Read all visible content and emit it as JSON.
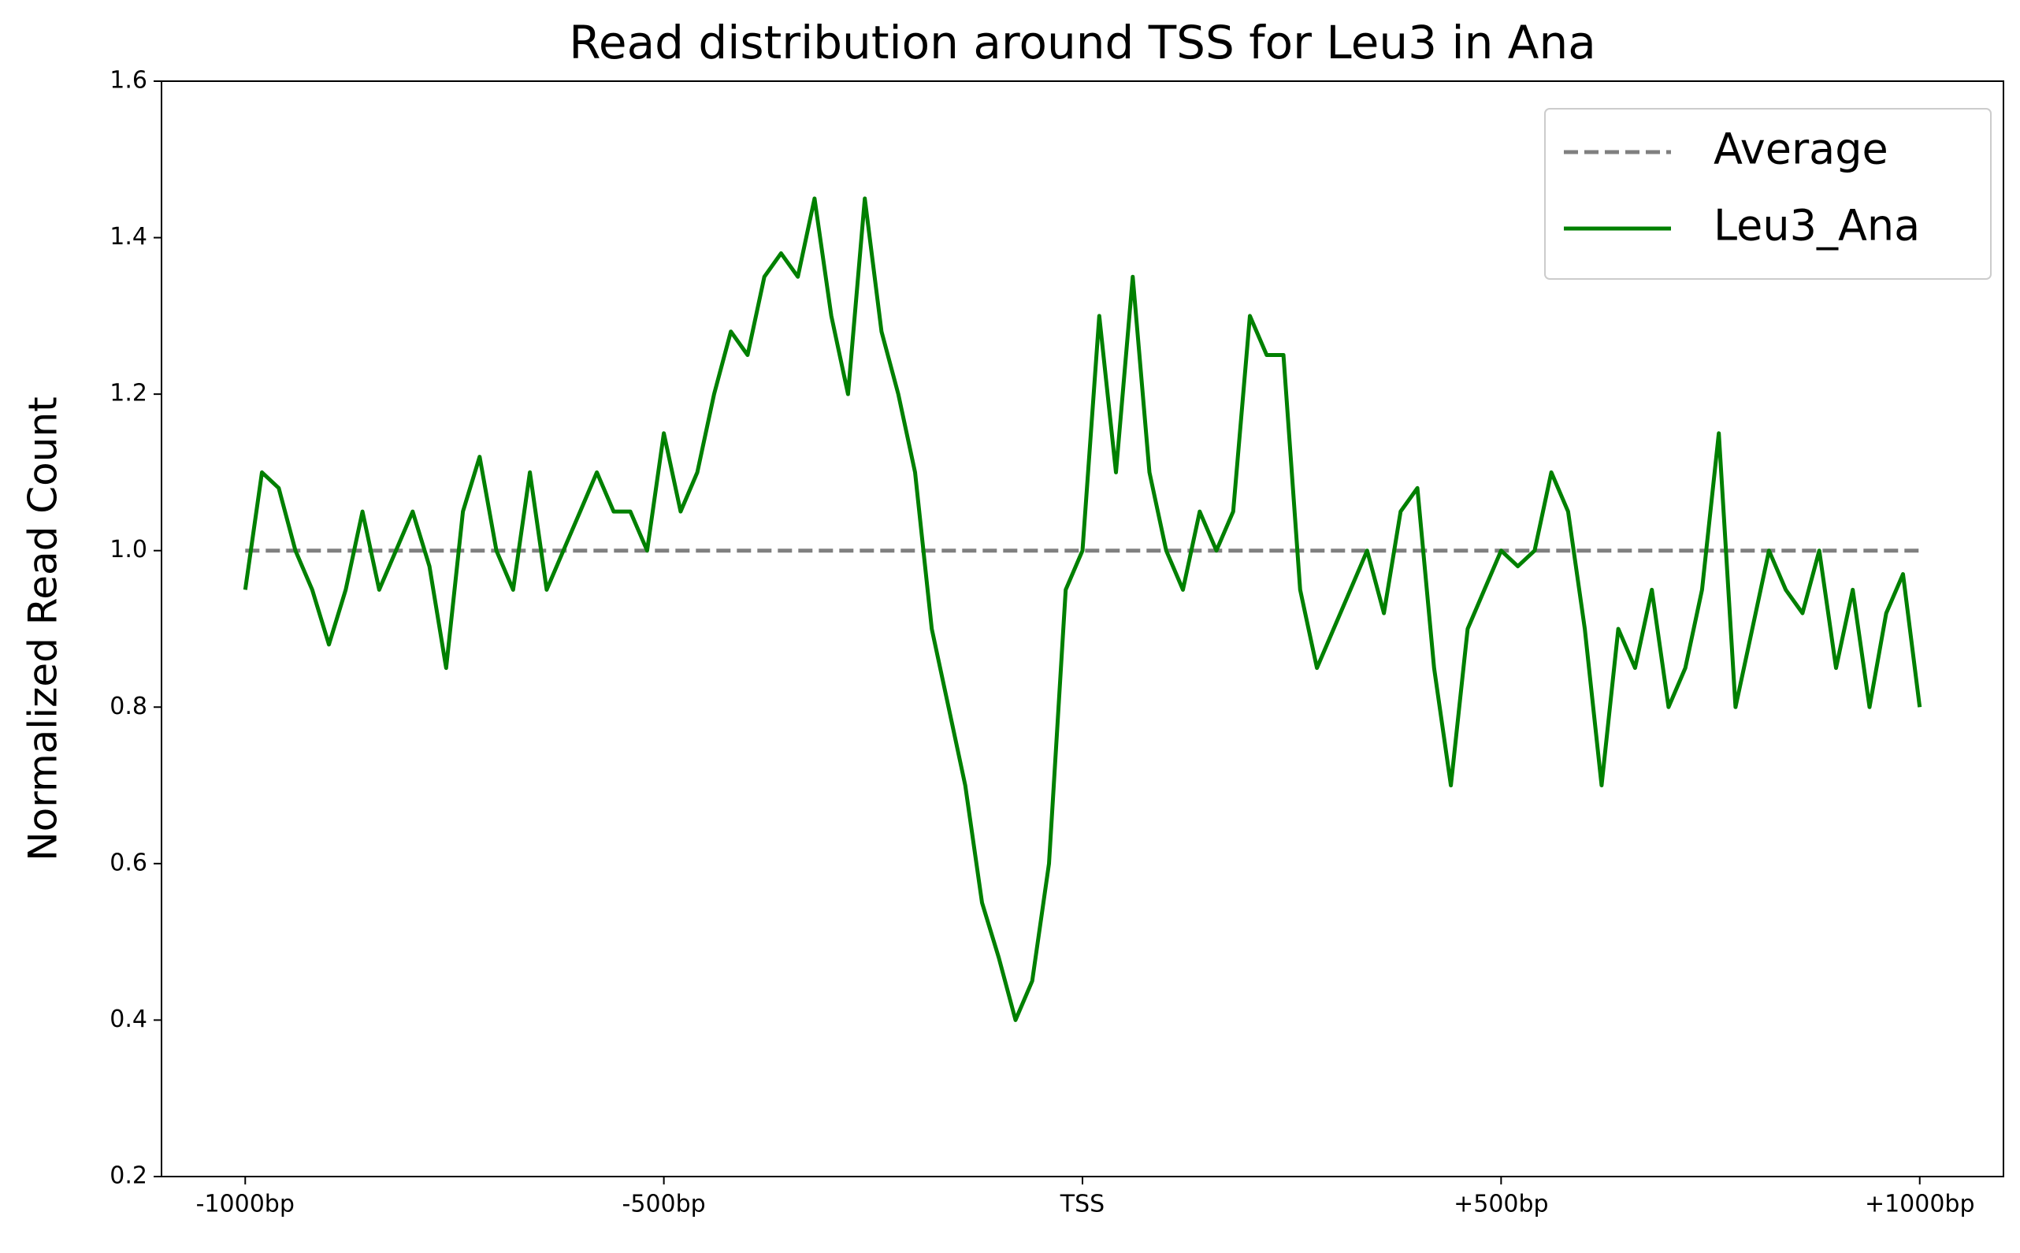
{
  "chart_data": {
    "type": "line",
    "title": "Read distribution around TSS for Leu3 in Ana",
    "y_label": "Normalized Read Count",
    "xlim": [
      -1100,
      1100
    ],
    "ylim": [
      0.2,
      1.6
    ],
    "xticks": [
      {
        "value": -1000,
        "label": "-1000bp"
      },
      {
        "value": -500,
        "label": "-500bp"
      },
      {
        "value": 0,
        "label": "TSS"
      },
      {
        "value": 500,
        "label": "+500bp"
      },
      {
        "value": 1000,
        "label": "+1000bp"
      }
    ],
    "yticks": [
      0.2,
      0.4,
      0.6,
      0.8,
      {
        "value": 1,
        "label": "1.0"
      },
      1.2,
      1.4,
      1.6
    ],
    "legend": "upper right",
    "series": [
      {
        "name": "Average",
        "color": "#808080",
        "dashed": true,
        "x": [
          -1000,
          1000
        ],
        "values": [
          1,
          1
        ]
      },
      {
        "name": "Leu3_Ana",
        "color": "#008000",
        "dashed": false,
        "x": [
          -1000,
          -980,
          -960,
          -940,
          -920,
          -900,
          -880,
          -860,
          -840,
          -820,
          -800,
          -780,
          -760,
          -740,
          -720,
          -700,
          -680,
          -660,
          -640,
          -620,
          -600,
          -580,
          -560,
          -540,
          -520,
          -500,
          -480,
          -460,
          -440,
          -420,
          -400,
          -380,
          -360,
          -340,
          -320,
          -300,
          -280,
          -260,
          -240,
          -220,
          -200,
          -180,
          -160,
          -140,
          -120,
          -100,
          -80,
          -60,
          -40,
          -20,
          0,
          20,
          40,
          60,
          80,
          100,
          120,
          140,
          160,
          180,
          200,
          220,
          240,
          260,
          280,
          300,
          320,
          340,
          360,
          380,
          400,
          420,
          440,
          460,
          480,
          500,
          520,
          540,
          560,
          580,
          600,
          620,
          640,
          660,
          680,
          700,
          720,
          740,
          760,
          780,
          800,
          820,
          840,
          860,
          880,
          900,
          920,
          940,
          960,
          980,
          1000
        ],
        "values": [
          0.95,
          1.1,
          1.08,
          1.0,
          0.95,
          0.88,
          0.95,
          1.05,
          0.95,
          1.0,
          1.05,
          0.98,
          0.85,
          1.05,
          1.12,
          1.0,
          0.95,
          1.1,
          0.95,
          1.0,
          1.05,
          1.1,
          1.05,
          1.05,
          1.0,
          1.15,
          1.05,
          1.1,
          1.2,
          1.28,
          1.25,
          1.35,
          1.38,
          1.35,
          1.45,
          1.3,
          1.2,
          1.45,
          1.28,
          1.2,
          1.1,
          0.9,
          0.8,
          0.7,
          0.55,
          0.48,
          0.4,
          0.45,
          0.6,
          0.95,
          1.0,
          1.3,
          1.1,
          1.35,
          1.1,
          1.0,
          0.95,
          1.05,
          1.0,
          1.05,
          1.3,
          1.25,
          1.25,
          0.95,
          0.85,
          0.9,
          0.95,
          1.0,
          0.92,
          1.05,
          1.08,
          0.85,
          0.7,
          0.9,
          0.95,
          1.0,
          0.98,
          1.0,
          1.1,
          1.05,
          0.9,
          0.7,
          0.9,
          0.85,
          0.95,
          0.8,
          0.85,
          0.95,
          1.15,
          0.8,
          0.9,
          1.0,
          0.95,
          0.92,
          1.0,
          0.85,
          0.95,
          0.8,
          0.92,
          0.97,
          0.8
        ]
      }
    ]
  }
}
